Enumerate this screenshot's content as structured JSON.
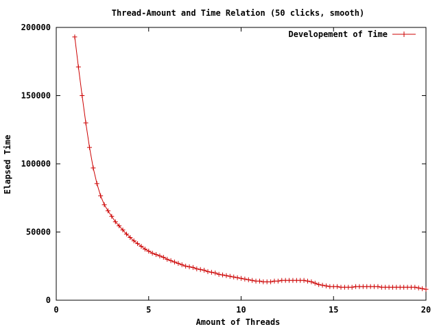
{
  "chart_data": {
    "type": "line",
    "title": "Thread-Amount and Time Relation (50 clicks, smooth)",
    "xlabel": "Amount of Threads",
    "ylabel": "Elapsed Time",
    "xlim": [
      0,
      20
    ],
    "ylim": [
      0,
      200000
    ],
    "xticks": [
      0,
      5,
      10,
      15,
      20
    ],
    "yticks": [
      0,
      50000,
      100000,
      150000,
      200000
    ],
    "grid": false,
    "legend_position": "top-right",
    "series": [
      {
        "name": "Developement of Time",
        "color": "#cc0000",
        "marker": "plus",
        "x": [
          1.0,
          1.2,
          1.4,
          1.6,
          1.8,
          2.0,
          2.2,
          2.4,
          2.6,
          2.8,
          3.0,
          3.2,
          3.4,
          3.6,
          3.8,
          4.0,
          4.2,
          4.4,
          4.6,
          4.8,
          5.0,
          5.2,
          5.4,
          5.6,
          5.8,
          6.0,
          6.2,
          6.4,
          6.6,
          6.8,
          7.0,
          7.2,
          7.4,
          7.6,
          7.8,
          8.0,
          8.2,
          8.4,
          8.6,
          8.8,
          9.0,
          9.2,
          9.4,
          9.6,
          9.8,
          10.0,
          10.2,
          10.4,
          10.6,
          10.8,
          11.0,
          11.2,
          11.4,
          11.6,
          11.8,
          12.0,
          12.2,
          12.4,
          12.6,
          12.8,
          13.0,
          13.2,
          13.4,
          13.6,
          13.8,
          14.0,
          14.2,
          14.4,
          14.6,
          14.8,
          15.0,
          15.2,
          15.4,
          15.6,
          15.8,
          16.0,
          16.2,
          16.4,
          16.6,
          16.8,
          17.0,
          17.2,
          17.4,
          17.6,
          17.8,
          18.0,
          18.2,
          18.4,
          18.6,
          18.8,
          19.0,
          19.2,
          19.4,
          19.6,
          19.8,
          20.0
        ],
        "y": [
          193000,
          171000,
          150000,
          130000,
          112000,
          97000,
          85500,
          76500,
          70000,
          65500,
          61500,
          57500,
          54500,
          51500,
          48500,
          46000,
          43500,
          41500,
          39500,
          37500,
          36000,
          34500,
          33500,
          32500,
          31500,
          30000,
          29000,
          28000,
          27000,
          26000,
          25000,
          24500,
          24000,
          23000,
          22500,
          22000,
          21000,
          20500,
          20000,
          19000,
          18500,
          18000,
          17500,
          17000,
          16500,
          16000,
          15500,
          15000,
          14500,
          14000,
          14000,
          13500,
          13500,
          13500,
          14000,
          14000,
          14500,
          14500,
          14500,
          14500,
          14500,
          14500,
          14500,
          14000,
          13500,
          12500,
          11500,
          11000,
          10500,
          10000,
          10000,
          10000,
          9500,
          9500,
          9500,
          9500,
          10000,
          10000,
          10000,
          10000,
          10000,
          10000,
          10000,
          9500,
          9500,
          9500,
          9500,
          9500,
          9500,
          9500,
          9500,
          9500,
          9500,
          9000,
          8500,
          8000
        ]
      }
    ]
  }
}
